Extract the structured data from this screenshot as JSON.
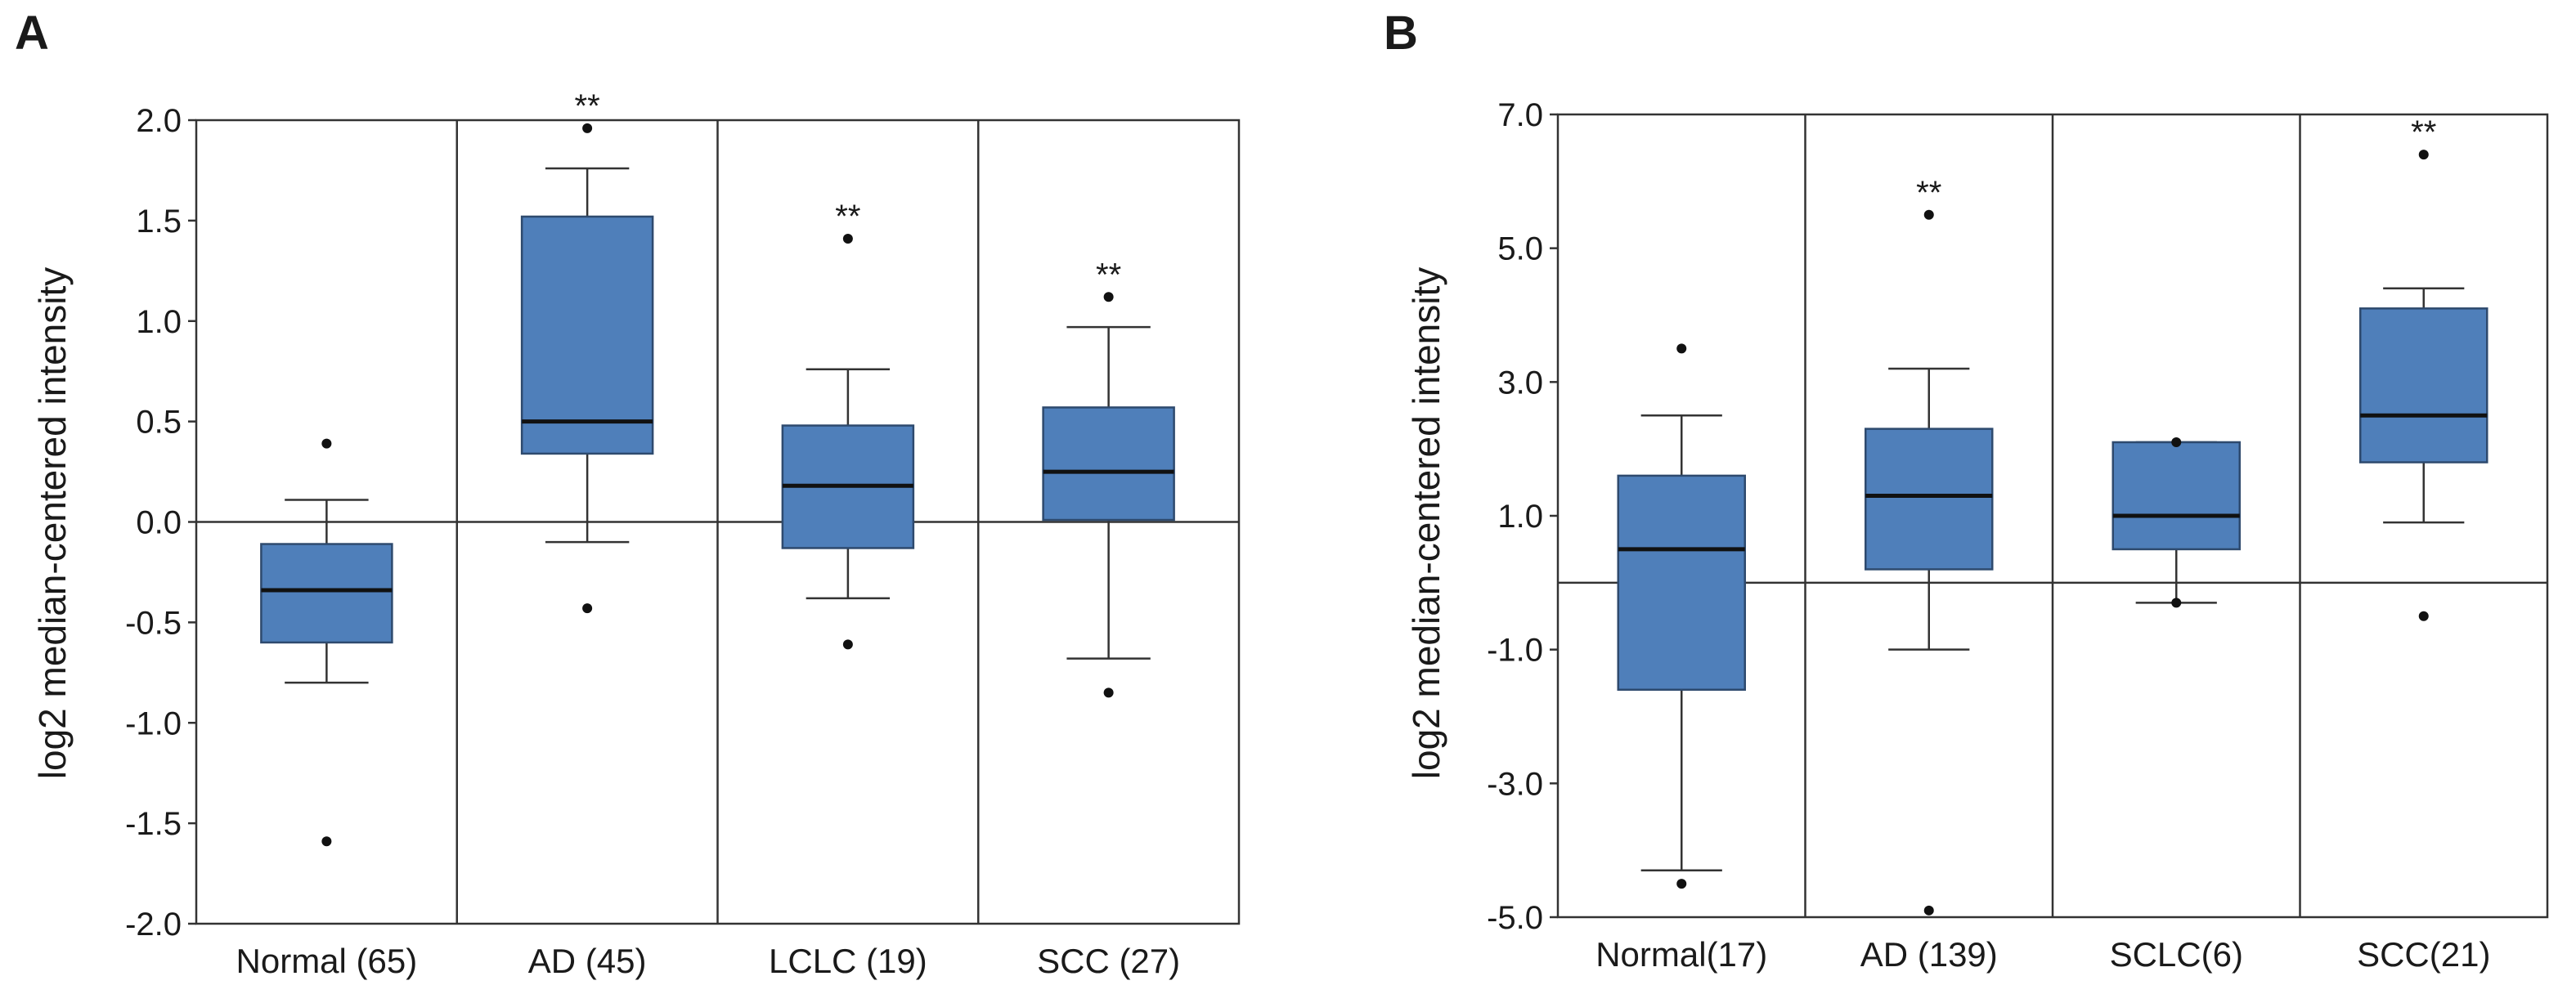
{
  "chart_data": [
    {
      "type": "box",
      "panel": "A",
      "ylabel": "log2 median-centered intensity",
      "ylim": [
        -2.0,
        2.0
      ],
      "yticks": [
        2.0,
        1.5,
        1.0,
        0.5,
        0.0,
        -0.5,
        -1.0,
        -1.5,
        -2.0
      ],
      "ytick_labels": [
        "2.0",
        "1.5",
        "1.0",
        "0.5",
        "0.0",
        "-0.5",
        "-1.0",
        "-1.5",
        "-2.0"
      ],
      "reference_line": 0.0,
      "categories": [
        "Normal (65)",
        "AD (45)",
        "LCLC (19)",
        "SCC (27)"
      ],
      "boxes": [
        {
          "whisker_low": -0.8,
          "q1": -0.6,
          "median": -0.34,
          "q3": -0.11,
          "whisker_high": 0.11,
          "outliers": [
            0.39,
            -1.59
          ],
          "significance": ""
        },
        {
          "whisker_low": -0.1,
          "q1": 0.34,
          "median": 0.5,
          "q3": 1.52,
          "whisker_high": 1.76,
          "outliers": [
            1.96,
            -0.43
          ],
          "significance": "**"
        },
        {
          "whisker_low": -0.38,
          "q1": -0.13,
          "median": 0.18,
          "q3": 0.48,
          "whisker_high": 0.76,
          "outliers": [
            1.41,
            -0.61
          ],
          "significance": "**"
        },
        {
          "whisker_low": -0.68,
          "q1": 0.01,
          "median": 0.25,
          "q3": 0.57,
          "whisker_high": 0.97,
          "outliers": [
            1.12,
            -0.85
          ],
          "significance": "**"
        }
      ]
    },
    {
      "type": "box",
      "panel": "B",
      "ylabel": "log2 median-centered intensity",
      "ylim": [
        -5.0,
        7.0
      ],
      "yticks": [
        7.0,
        5.0,
        3.0,
        1.0,
        -1.0,
        -3.0,
        -5.0
      ],
      "ytick_labels": [
        "7.0",
        "5.0",
        "3.0",
        "1.0",
        "-1.0",
        "-3.0",
        "-5.0"
      ],
      "reference_line": 0.0,
      "categories": [
        "Normal(17)",
        "AD (139)",
        "SCLC(6)",
        "SCC(21)"
      ],
      "boxes": [
        {
          "whisker_low": -4.3,
          "q1": -1.6,
          "median": 0.5,
          "q3": 1.6,
          "whisker_high": 2.5,
          "outliers": [
            3.5,
            -4.5
          ],
          "significance": ""
        },
        {
          "whisker_low": -1.0,
          "q1": 0.2,
          "median": 1.3,
          "q3": 2.3,
          "whisker_high": 3.2,
          "outliers": [
            5.5,
            -4.9
          ],
          "significance": "**"
        },
        {
          "whisker_low": -0.3,
          "q1": 0.5,
          "median": 1.0,
          "q3": 2.1,
          "whisker_high": 2.1,
          "outliers": [
            2.1,
            -0.3
          ],
          "significance": ""
        },
        {
          "whisker_low": 0.9,
          "q1": 1.8,
          "median": 2.5,
          "q3": 4.1,
          "whisker_high": 4.4,
          "outliers": [
            6.4,
            -0.5
          ],
          "significance": "**"
        }
      ]
    }
  ]
}
